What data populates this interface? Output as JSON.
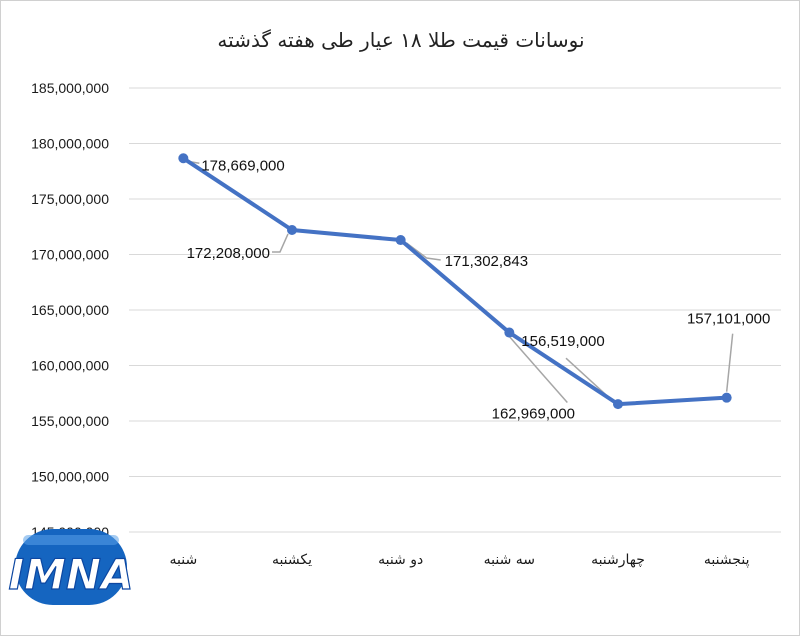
{
  "chart_data": {
    "type": "line",
    "title": "نوسانات قیمت طلا ۱۸ عیار طی هفته گذشته",
    "xlabel": "",
    "ylabel": "",
    "categories": [
      "شنبه",
      "یکشنبه",
      "دو شنبه",
      "سه شنبه",
      "چهارشنبه",
      "پنجشنبه"
    ],
    "values": [
      178669000,
      172208000,
      171302843,
      162969000,
      156519000,
      157101000
    ],
    "data_labels": [
      "178,669,000",
      "172,208,000",
      "171,302,843",
      "162,969,000",
      "156,519,000",
      "157,101,000"
    ],
    "ylim": [
      145000000,
      185000000
    ],
    "yticks": [
      145000000,
      150000000,
      155000000,
      160000000,
      165000000,
      170000000,
      175000000,
      180000000,
      185000000
    ],
    "ytick_labels": [
      "145,000,000",
      "150,000,000",
      "155,000,000",
      "160,000,000",
      "165,000,000",
      "170,000,000",
      "175,000,000",
      "180,000,000",
      "185,000,000"
    ],
    "grid": true,
    "legend": "none",
    "line_color": "#4472c4"
  },
  "watermark": {
    "text": "IMNA",
    "color": "#1565c0"
  }
}
